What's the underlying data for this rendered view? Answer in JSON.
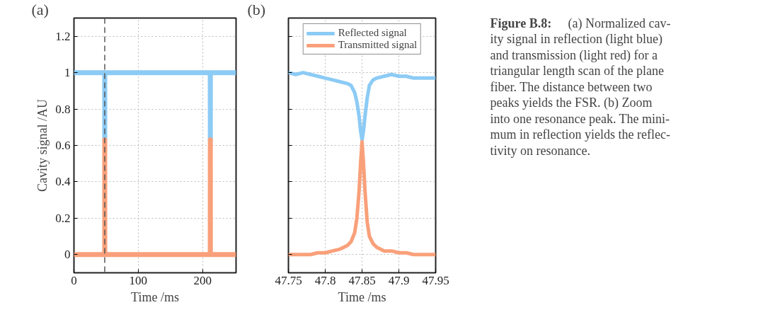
{
  "chart_data": [
    {
      "type": "line",
      "title": "(a)",
      "xlabel": "Time /ms",
      "ylabel": "Cavity signal /AU",
      "xlim": [
        0,
        252
      ],
      "ylim": [
        -0.1,
        1.3
      ],
      "xticks": [
        0,
        100,
        200
      ],
      "yticks": [
        0,
        0.2,
        0.4,
        0.6,
        0.8,
        1,
        1.2
      ],
      "grid": true,
      "line_style": "solid",
      "ref_lines": [
        {
          "axis": "x",
          "value": 47.85,
          "color": "#555555",
          "line_style": "dashed"
        }
      ],
      "series": [
        {
          "color": "#8ccbf5",
          "x": [
            0,
            20,
            40,
            47.8,
            47.85,
            47.9,
            80,
            120,
            160,
            200,
            211.9,
            212,
            212.1,
            230,
            252
          ],
          "values": [
            1,
            1,
            1,
            1,
            0.63,
            1,
            1,
            1,
            1,
            1,
            1,
            0.63,
            1,
            1,
            1
          ]
        },
        {
          "color": "#f9a07a",
          "x": [
            0,
            20,
            40,
            47.8,
            47.85,
            47.9,
            80,
            120,
            160,
            200,
            211.9,
            212,
            212.1,
            230,
            252
          ],
          "values": [
            0,
            0,
            0,
            0,
            0.63,
            0,
            0,
            0,
            0,
            0,
            0,
            0.63,
            0,
            0,
            0
          ]
        }
      ]
    },
    {
      "type": "line",
      "title": "(b)",
      "xlabel": "Time /ms",
      "xlim": [
        47.75,
        47.95
      ],
      "ylim": [
        -0.1,
        1.3
      ],
      "xticks": [
        47.75,
        47.8,
        47.85,
        47.9,
        47.95
      ],
      "yticks": [
        0,
        0.2,
        0.4,
        0.6,
        0.8,
        1,
        1.2
      ],
      "grid": true,
      "legend": "top",
      "tick_labels": "x",
      "line_style": "solid",
      "series": [
        {
          "name": "Reflected signal",
          "color": "#8ccbf5",
          "x": [
            47.75,
            47.76,
            47.77,
            47.78,
            47.79,
            47.8,
            47.81,
            47.82,
            47.83,
            47.835,
            47.84,
            47.843,
            47.846,
            47.848,
            47.85,
            47.852,
            47.854,
            47.857,
            47.86,
            47.865,
            47.87,
            47.88,
            47.89,
            47.9,
            47.91,
            47.92,
            47.93,
            47.94,
            47.95
          ],
          "values": [
            1.0,
            0.99,
            1.0,
            0.99,
            0.98,
            0.97,
            0.96,
            0.95,
            0.94,
            0.93,
            0.89,
            0.84,
            0.76,
            0.68,
            0.63,
            0.68,
            0.76,
            0.86,
            0.93,
            0.96,
            0.97,
            0.98,
            0.99,
            0.98,
            0.98,
            0.97,
            0.97,
            0.97,
            0.97
          ]
        },
        {
          "name": "Transmitted signal",
          "color": "#f9a07a",
          "x": [
            47.75,
            47.76,
            47.77,
            47.78,
            47.79,
            47.8,
            47.81,
            47.82,
            47.83,
            47.835,
            47.84,
            47.843,
            47.846,
            47.848,
            47.85,
            47.852,
            47.854,
            47.857,
            47.86,
            47.865,
            47.87,
            47.88,
            47.89,
            47.9,
            47.91,
            47.92,
            47.93,
            47.94,
            47.95
          ],
          "values": [
            0,
            0,
            0,
            0,
            0.01,
            0.01,
            0.02,
            0.03,
            0.05,
            0.07,
            0.12,
            0.2,
            0.35,
            0.5,
            0.62,
            0.5,
            0.35,
            0.18,
            0.1,
            0.06,
            0.04,
            0.02,
            0.02,
            0.01,
            0.01,
            0,
            0,
            0,
            0
          ]
        }
      ]
    },
    {
      "type": "other",
      "title": "Figure B.8:",
      "annotations": [
        "(a) Normalized cav-",
        "ity signal in reflection (light blue)",
        "and transmission (light red) for a",
        "triangular length scan of the plane",
        "fiber. The distance between two",
        "peaks yields the FSR. (b) Zoom",
        "into one resonance peak. The mini-",
        "mum in reflection yields the reflec-",
        "tivity on resonance."
      ]
    }
  ]
}
